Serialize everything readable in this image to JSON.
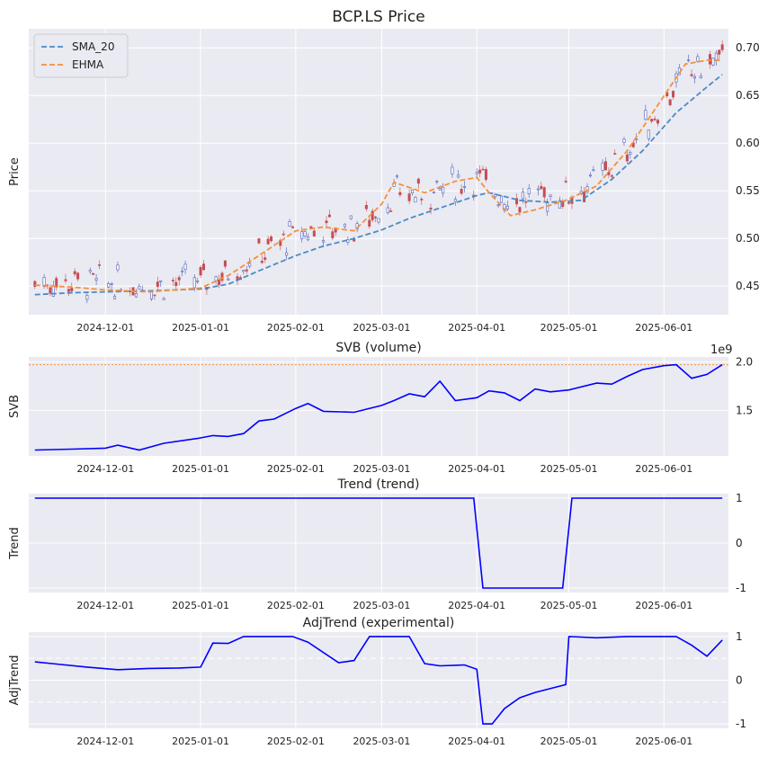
{
  "chart_data": [
    {
      "type": "candlestick",
      "title": "BCP.LS Price",
      "ylabel": "Price",
      "x_ticks": [
        "2024-12-01",
        "2025-01-01",
        "2025-02-01",
        "2025-03-01",
        "2025-04-01",
        "2025-05-01",
        "2025-06-01"
      ],
      "y_ticks": [
        0.45,
        0.5,
        0.55,
        0.6,
        0.65,
        0.7
      ],
      "ylim": [
        0.42,
        0.72
      ],
      "xlim": [
        "2024-11-06",
        "2025-06-22"
      ],
      "y_axis_side": "right",
      "grid": true,
      "legend": {
        "placement": "top-left",
        "entries": [
          "SMA_20",
          "EHMA"
        ]
      },
      "series": [
        {
          "name": "SMA_20",
          "style": "dashed",
          "color": "#4c8bc4",
          "points": [
            [
              "2024-11-08",
              0.441
            ],
            [
              "2024-11-20",
              0.443
            ],
            [
              "2024-12-01",
              0.444
            ],
            [
              "2024-12-15",
              0.445
            ],
            [
              "2025-01-01",
              0.447
            ],
            [
              "2025-01-10",
              0.452
            ],
            [
              "2025-01-20",
              0.466
            ],
            [
              "2025-02-01",
              0.482
            ],
            [
              "2025-02-10",
              0.492
            ],
            [
              "2025-02-20",
              0.5
            ],
            [
              "2025-03-01",
              0.509
            ],
            [
              "2025-03-10",
              0.521
            ],
            [
              "2025-03-20",
              0.532
            ],
            [
              "2025-04-01",
              0.545
            ],
            [
              "2025-04-05",
              0.548
            ],
            [
              "2025-04-15",
              0.54
            ],
            [
              "2025-04-25",
              0.538
            ],
            [
              "2025-05-05",
              0.54
            ],
            [
              "2025-05-15",
              0.562
            ],
            [
              "2025-05-25",
              0.592
            ],
            [
              "2025-06-05",
              0.632
            ],
            [
              "2025-06-15",
              0.659
            ],
            [
              "2025-06-20",
              0.672
            ]
          ]
        },
        {
          "name": "EHMA",
          "style": "dashed",
          "color": "#f5903a",
          "points": [
            [
              "2024-11-08",
              0.451
            ],
            [
              "2024-11-20",
              0.449
            ],
            [
              "2024-12-01",
              0.446
            ],
            [
              "2024-12-15",
              0.444
            ],
            [
              "2025-01-01",
              0.448
            ],
            [
              "2025-01-10",
              0.461
            ],
            [
              "2025-01-20",
              0.482
            ],
            [
              "2025-02-01",
              0.508
            ],
            [
              "2025-02-10",
              0.512
            ],
            [
              "2025-02-20",
              0.508
            ],
            [
              "2025-03-01",
              0.536
            ],
            [
              "2025-03-05",
              0.559
            ],
            [
              "2025-03-15",
              0.548
            ],
            [
              "2025-03-25",
              0.56
            ],
            [
              "2025-04-01",
              0.564
            ],
            [
              "2025-04-05",
              0.548
            ],
            [
              "2025-04-12",
              0.524
            ],
            [
              "2025-04-20",
              0.53
            ],
            [
              "2025-04-30",
              0.54
            ],
            [
              "2025-05-10",
              0.555
            ],
            [
              "2025-05-20",
              0.592
            ],
            [
              "2025-05-30",
              0.64
            ],
            [
              "2025-06-08",
              0.683
            ],
            [
              "2025-06-15",
              0.687
            ],
            [
              "2025-06-20",
              0.687
            ]
          ]
        }
      ],
      "candle_colors": {
        "up": "#4b5fb8",
        "down": "#c44e52"
      },
      "candles_note": "daily OHLC candles around the moving averages"
    },
    {
      "type": "line",
      "title": "SVB (volume)",
      "ylabel": "SVB",
      "y_scale_label": "1e9",
      "y_ticks": [
        1.5,
        2.0
      ],
      "ylim": [
        1.03,
        2.05
      ],
      "y_axis_side": "right",
      "x_ticks": [
        "2024-12-01",
        "2025-01-01",
        "2025-02-01",
        "2025-03-01",
        "2025-04-01",
        "2025-05-01",
        "2025-06-01"
      ],
      "reference_line": 1.97,
      "series": [
        {
          "values_unit": "1e9",
          "color": "#0000ff",
          "points": [
            [
              "2024-11-08",
              1.09
            ],
            [
              "2024-11-20",
              1.1
            ],
            [
              "2024-12-01",
              1.11
            ],
            [
              "2024-12-05",
              1.14
            ],
            [
              "2024-12-12",
              1.09
            ],
            [
              "2024-12-20",
              1.16
            ],
            [
              "2024-12-31",
              1.21
            ],
            [
              "2025-01-05",
              1.24
            ],
            [
              "2025-01-10",
              1.23
            ],
            [
              "2025-01-15",
              1.26
            ],
            [
              "2025-01-20",
              1.39
            ],
            [
              "2025-01-25",
              1.41
            ],
            [
              "2025-02-01",
              1.52
            ],
            [
              "2025-02-05",
              1.57
            ],
            [
              "2025-02-10",
              1.49
            ],
            [
              "2025-02-20",
              1.48
            ],
            [
              "2025-03-01",
              1.55
            ],
            [
              "2025-03-05",
              1.6
            ],
            [
              "2025-03-10",
              1.67
            ],
            [
              "2025-03-15",
              1.64
            ],
            [
              "2025-03-20",
              1.8
            ],
            [
              "2025-03-25",
              1.6
            ],
            [
              "2025-04-01",
              1.63
            ],
            [
              "2025-04-05",
              1.7
            ],
            [
              "2025-04-10",
              1.68
            ],
            [
              "2025-04-15",
              1.6
            ],
            [
              "2025-04-20",
              1.72
            ],
            [
              "2025-04-25",
              1.69
            ],
            [
              "2025-05-01",
              1.71
            ],
            [
              "2025-05-10",
              1.78
            ],
            [
              "2025-05-15",
              1.77
            ],
            [
              "2025-05-20",
              1.85
            ],
            [
              "2025-05-25",
              1.92
            ],
            [
              "2025-06-01",
              1.96
            ],
            [
              "2025-06-05",
              1.97
            ],
            [
              "2025-06-10",
              1.83
            ],
            [
              "2025-06-15",
              1.87
            ],
            [
              "2025-06-20",
              1.97
            ]
          ]
        }
      ]
    },
    {
      "type": "line",
      "title": "Trend (trend)",
      "ylabel": "Trend",
      "y_ticks": [
        -1,
        0,
        1
      ],
      "ylim": [
        -1.1,
        1.1
      ],
      "y_axis_side": "right",
      "x_ticks": [
        "2024-12-01",
        "2025-01-01",
        "2025-02-01",
        "2025-03-01",
        "2025-04-01",
        "2025-05-01",
        "2025-06-01"
      ],
      "series": [
        {
          "color": "#0000ff",
          "points": [
            [
              "2024-11-08",
              1
            ],
            [
              "2025-03-31",
              1
            ],
            [
              "2025-04-03",
              -1
            ],
            [
              "2025-04-29",
              -1
            ],
            [
              "2025-05-02",
              1
            ],
            [
              "2025-06-20",
              1
            ]
          ]
        }
      ]
    },
    {
      "type": "line",
      "title": "AdjTrend (experimental)",
      "ylabel": "AdjTrend",
      "y_ticks": [
        -1,
        0,
        1
      ],
      "ylim": [
        -1.1,
        1.1
      ],
      "y_axis_side": "right",
      "x_ticks": [
        "2024-12-01",
        "2025-01-01",
        "2025-02-01",
        "2025-03-01",
        "2025-04-01",
        "2025-05-01",
        "2025-06-01"
      ],
      "reference_lines": [
        0.5,
        -0.5
      ],
      "series": [
        {
          "color": "#0000ff",
          "points": [
            [
              "2024-11-08",
              0.42
            ],
            [
              "2024-11-15",
              0.37
            ],
            [
              "2024-11-25",
              0.3
            ],
            [
              "2024-12-05",
              0.24
            ],
            [
              "2024-12-15",
              0.27
            ],
            [
              "2024-12-25",
              0.28
            ],
            [
              "2025-01-01",
              0.3
            ],
            [
              "2025-01-05",
              0.85
            ],
            [
              "2025-01-10",
              0.84
            ],
            [
              "2025-01-15",
              1.0
            ],
            [
              "2025-01-31",
              1.0
            ],
            [
              "2025-02-05",
              0.87
            ],
            [
              "2025-02-15",
              0.4
            ],
            [
              "2025-02-20",
              0.45
            ],
            [
              "2025-02-25",
              1.0
            ],
            [
              "2025-03-10",
              1.0
            ],
            [
              "2025-03-15",
              0.38
            ],
            [
              "2025-03-20",
              0.33
            ],
            [
              "2025-03-28",
              0.35
            ],
            [
              "2025-04-01",
              0.25
            ],
            [
              "2025-04-03",
              -1.0
            ],
            [
              "2025-04-06",
              -1.0
            ],
            [
              "2025-04-10",
              -0.65
            ],
            [
              "2025-04-15",
              -0.4
            ],
            [
              "2025-04-20",
              -0.28
            ],
            [
              "2025-04-30",
              -0.1
            ],
            [
              "2025-05-01",
              1.0
            ],
            [
              "2025-05-10",
              0.97
            ],
            [
              "2025-05-20",
              1.0
            ],
            [
              "2025-06-01",
              1.0
            ],
            [
              "2025-06-05",
              1.0
            ],
            [
              "2025-06-10",
              0.8
            ],
            [
              "2025-06-15",
              0.55
            ],
            [
              "2025-06-20",
              0.92
            ]
          ]
        }
      ]
    }
  ]
}
